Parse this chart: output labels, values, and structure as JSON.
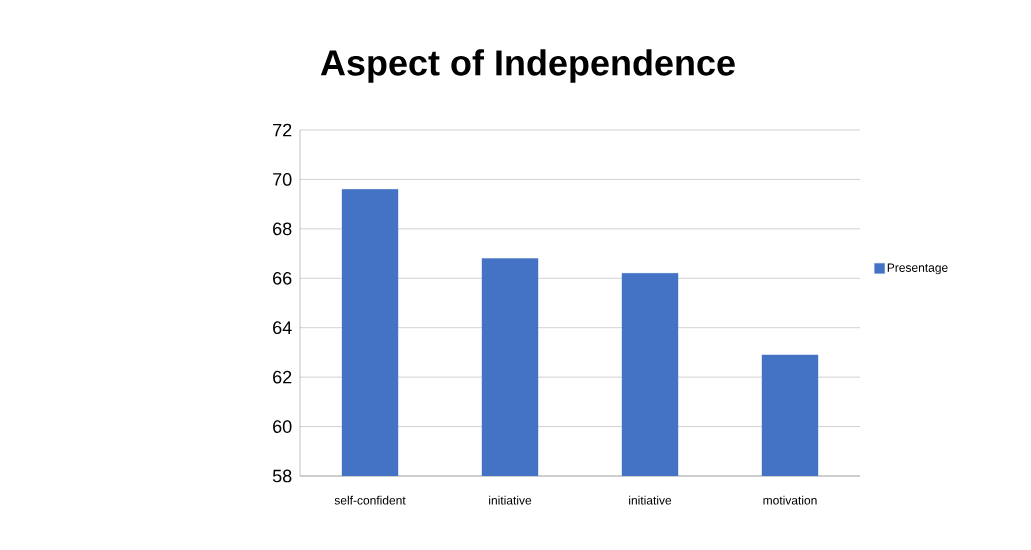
{
  "chart_data": {
    "type": "bar",
    "title": "Aspect of Independence",
    "categories": [
      "self-confident",
      "initiative",
      "initiative",
      "motivation"
    ],
    "series": [
      {
        "name": "Presentage",
        "color": "#4472c4",
        "values": [
          69.6,
          66.8,
          66.2,
          62.9
        ]
      }
    ],
    "ylim": [
      58,
      72
    ],
    "yticks": [
      58,
      60,
      62,
      64,
      66,
      68,
      70,
      72
    ],
    "grid": "y",
    "legend": "right"
  }
}
